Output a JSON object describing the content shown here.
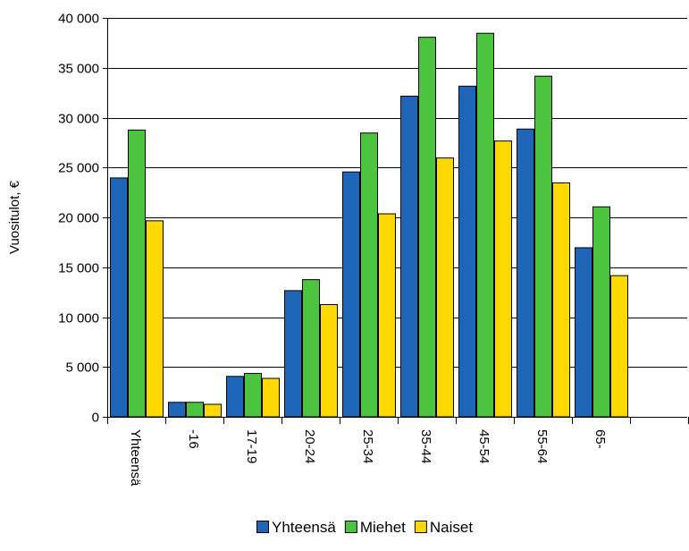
{
  "chart_data": {
    "type": "bar",
    "ylabel": "Vuositulot, €",
    "ylim": [
      0,
      40000
    ],
    "yticks": [
      0,
      5000,
      10000,
      15000,
      20000,
      25000,
      30000,
      35000,
      40000
    ],
    "ytick_labels": [
      "0",
      "5 000",
      "10 000",
      "15 000",
      "20 000",
      "25 000",
      "30 000",
      "35 000",
      "40 000"
    ],
    "categories": [
      "Yhteensä",
      "-16",
      "17-19",
      "20-24",
      "25-34",
      "35-44",
      "45-54",
      "55-64",
      "65-"
    ],
    "series": [
      {
        "name": "Yhteensä",
        "color": "#1f66b8",
        "values": [
          24000,
          1500,
          4100,
          12700,
          24600,
          32200,
          33200,
          28900,
          17000
        ]
      },
      {
        "name": "Miehet",
        "color": "#4dc43f",
        "values": [
          28800,
          1500,
          4400,
          13800,
          28500,
          38100,
          38500,
          34200,
          21100
        ]
      },
      {
        "name": "Naiset",
        "color": "#ffd800",
        "values": [
          19700,
          1300,
          3900,
          11300,
          20400,
          26000,
          27700,
          23500,
          14200
        ]
      }
    ],
    "grid": true,
    "legend": "bottom-center"
  }
}
